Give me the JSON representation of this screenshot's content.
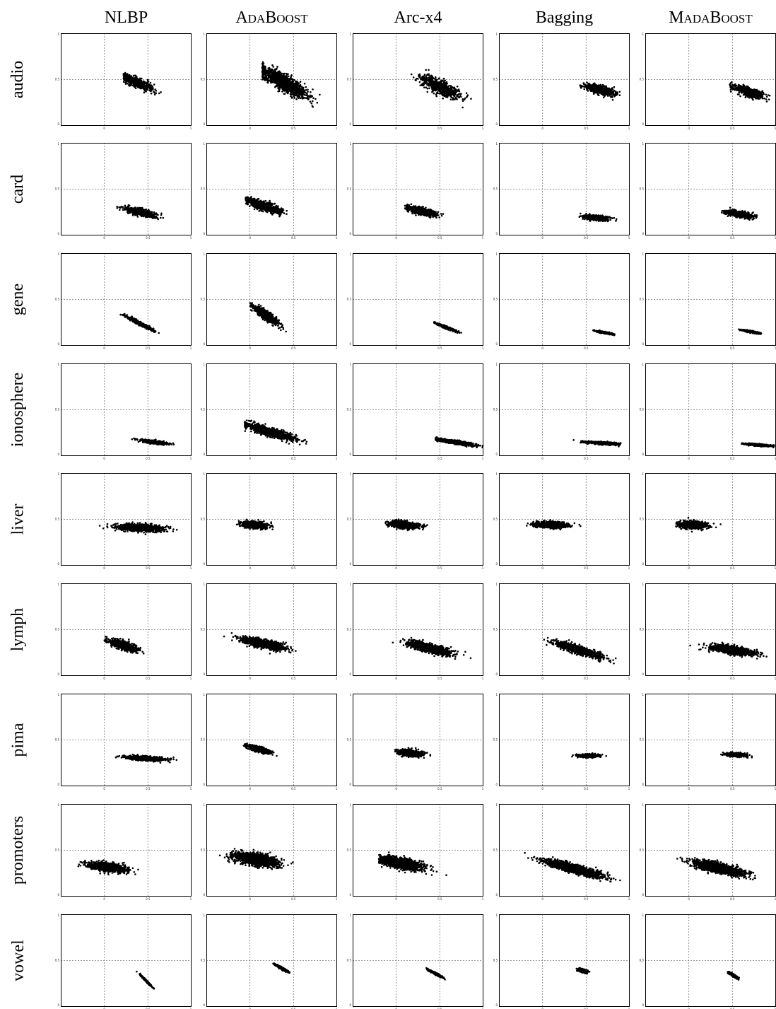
{
  "chart_data": {
    "type": "scatter",
    "layout": "small multiples (rows = datasets, columns = methods)",
    "columns": [
      "NLBP",
      "AdaBoost",
      "Arc-x4",
      "Bagging",
      "MadaBoost"
    ],
    "rows": [
      "audio",
      "card",
      "gene",
      "ionosphere",
      "liver",
      "lymph",
      "pima",
      "promoters",
      "vowel"
    ],
    "xlim": [
      -0.5,
      1
    ],
    "ylim": [
      0,
      1
    ],
    "x_ticks": [
      "0",
      "0.5",
      "1"
    ],
    "y_ticks": [
      "0",
      "0.5",
      "1"
    ],
    "grid": "dashed reference lines at x = 0, x = 0.5 and y = 0.5",
    "marker": "black dots",
    "clusters": [
      [
        {
          "cx": 0.37,
          "cy": 0.47,
          "sx": 0.17,
          "sy": 0.06,
          "slope": -0.38,
          "n": 500,
          "xmin": 0.22,
          "xmax": 0.65
        },
        {
          "cx": 0.39,
          "cy": 0.47,
          "sx": 0.24,
          "sy": 0.1,
          "slope": -0.5,
          "n": 1200,
          "xmin": 0.14,
          "xmax": 0.88
        },
        {
          "cx": 0.5,
          "cy": 0.42,
          "sx": 0.2,
          "sy": 0.08,
          "slope": -0.42,
          "n": 800,
          "xmin": 0.17,
          "xmax": 0.88
        },
        {
          "cx": 0.66,
          "cy": 0.39,
          "sx": 0.16,
          "sy": 0.05,
          "slope": -0.22,
          "n": 600,
          "xmin": 0.43,
          "xmax": 0.9
        },
        {
          "cx": 0.68,
          "cy": 0.37,
          "sx": 0.15,
          "sy": 0.05,
          "slope": -0.28,
          "n": 600,
          "xmin": 0.47,
          "xmax": 0.95
        }
      ],
      [
        {
          "cx": 0.42,
          "cy": 0.25,
          "sx": 0.17,
          "sy": 0.04,
          "slope": -0.22,
          "n": 500,
          "xmin": 0.1,
          "xmax": 0.78
        },
        {
          "cx": 0.16,
          "cy": 0.32,
          "sx": 0.17,
          "sy": 0.05,
          "slope": -0.3,
          "n": 900,
          "xmin": -0.05,
          "xmax": 0.65
        },
        {
          "cx": 0.29,
          "cy": 0.26,
          "sx": 0.16,
          "sy": 0.04,
          "slope": -0.2,
          "n": 600,
          "xmin": 0.1,
          "xmax": 0.72
        },
        {
          "cx": 0.62,
          "cy": 0.19,
          "sx": 0.13,
          "sy": 0.03,
          "slope": -0.08,
          "n": 500,
          "xmin": 0.37,
          "xmax": 0.85
        },
        {
          "cx": 0.58,
          "cy": 0.23,
          "sx": 0.14,
          "sy": 0.035,
          "slope": -0.14,
          "n": 500,
          "xmin": 0.3,
          "xmax": 0.78
        }
      ],
      [
        {
          "cx": 0.41,
          "cy": 0.24,
          "sx": 0.14,
          "sy": 0.02,
          "slope": -0.48,
          "n": 500,
          "xmin": 0.15,
          "xmax": 0.69
        },
        {
          "cx": 0.18,
          "cy": 0.33,
          "sx": 0.13,
          "sy": 0.05,
          "slope": -0.6,
          "n": 800,
          "xmin": 0.0,
          "xmax": 0.64
        },
        {
          "cx": 0.57,
          "cy": 0.2,
          "sx": 0.1,
          "sy": 0.015,
          "slope": -0.35,
          "n": 400,
          "xmin": 0.43,
          "xmax": 0.76
        },
        {
          "cx": 0.72,
          "cy": 0.14,
          "sx": 0.1,
          "sy": 0.01,
          "slope": -0.18,
          "n": 400,
          "xmin": 0.58,
          "xmax": 0.83
        },
        {
          "cx": 0.72,
          "cy": 0.15,
          "sx": 0.1,
          "sy": 0.012,
          "slope": -0.17,
          "n": 400,
          "xmin": 0.56,
          "xmax": 0.83
        }
      ],
      [
        {
          "cx": 0.57,
          "cy": 0.15,
          "sx": 0.14,
          "sy": 0.02,
          "slope": -0.12,
          "n": 400,
          "xmin": 0.3,
          "xmax": 0.84
        },
        {
          "cx": 0.23,
          "cy": 0.26,
          "sx": 0.25,
          "sy": 0.05,
          "slope": -0.27,
          "n": 1000,
          "xmin": -0.06,
          "xmax": 0.85
        },
        {
          "cx": 0.67,
          "cy": 0.15,
          "sx": 0.21,
          "sy": 0.02,
          "slope": -0.15,
          "n": 800,
          "xmin": 0.45,
          "xmax": 1.0
        },
        {
          "cx": 0.68,
          "cy": 0.14,
          "sx": 0.17,
          "sy": 0.015,
          "slope": -0.06,
          "n": 600,
          "xmin": 0.26,
          "xmax": 0.9
        },
        {
          "cx": 0.8,
          "cy": 0.12,
          "sx": 0.15,
          "sy": 0.012,
          "slope": -0.07,
          "n": 500,
          "xmin": 0.58,
          "xmax": 0.98
        }
      ],
      [
        {
          "cx": 0.41,
          "cy": 0.41,
          "sx": 0.24,
          "sy": 0.04,
          "slope": -0.04,
          "n": 1000,
          "xmin": -0.1,
          "xmax": 0.96
        },
        {
          "cx": 0.05,
          "cy": 0.44,
          "sx": 0.13,
          "sy": 0.04,
          "slope": -0.08,
          "n": 700,
          "xmin": -0.18,
          "xmax": 0.35
        },
        {
          "cx": 0.09,
          "cy": 0.44,
          "sx": 0.15,
          "sy": 0.04,
          "slope": -0.07,
          "n": 700,
          "xmin": -0.27,
          "xmax": 0.45
        },
        {
          "cx": 0.08,
          "cy": 0.44,
          "sx": 0.17,
          "sy": 0.035,
          "slope": -0.03,
          "n": 800,
          "xmin": -0.2,
          "xmax": 0.54
        },
        {
          "cx": 0.05,
          "cy": 0.44,
          "sx": 0.15,
          "sy": 0.04,
          "slope": -0.03,
          "n": 800,
          "xmin": -0.15,
          "xmax": 0.45
        }
      ],
      [
        {
          "cx": 0.22,
          "cy": 0.33,
          "sx": 0.15,
          "sy": 0.05,
          "slope": -0.25,
          "n": 700,
          "xmin": 0.0,
          "xmax": 0.55
        },
        {
          "cx": 0.15,
          "cy": 0.35,
          "sx": 0.23,
          "sy": 0.05,
          "slope": -0.2,
          "n": 1000,
          "xmin": -0.3,
          "xmax": 0.78
        },
        {
          "cx": 0.38,
          "cy": 0.3,
          "sx": 0.23,
          "sy": 0.05,
          "slope": -0.22,
          "n": 1000,
          "xmin": -0.1,
          "xmax": 0.9
        },
        {
          "cx": 0.42,
          "cy": 0.28,
          "sx": 0.24,
          "sy": 0.045,
          "slope": -0.28,
          "n": 1000,
          "xmin": -0.05,
          "xmax": 0.9
        },
        {
          "cx": 0.5,
          "cy": 0.28,
          "sx": 0.23,
          "sy": 0.045,
          "slope": -0.12,
          "n": 1000,
          "xmin": 0.0,
          "xmax": 0.9
        }
      ],
      [
        {
          "cx": 0.48,
          "cy": 0.3,
          "sx": 0.2,
          "sy": 0.025,
          "slope": -0.05,
          "n": 700,
          "xmin": 0.12,
          "xmax": 0.9
        },
        {
          "cx": 0.1,
          "cy": 0.4,
          "sx": 0.12,
          "sy": 0.03,
          "slope": -0.25,
          "n": 600,
          "xmin": -0.12,
          "xmax": 0.45
        },
        {
          "cx": 0.16,
          "cy": 0.36,
          "sx": 0.13,
          "sy": 0.035,
          "slope": -0.08,
          "n": 700,
          "xmin": -0.02,
          "xmax": 0.5
        },
        {
          "cx": 0.53,
          "cy": 0.33,
          "sx": 0.11,
          "sy": 0.02,
          "slope": 0.0,
          "n": 500,
          "xmin": 0.3,
          "xmax": 0.75
        },
        {
          "cx": 0.54,
          "cy": 0.34,
          "sx": 0.11,
          "sy": 0.022,
          "slope": -0.05,
          "n": 500,
          "xmin": 0.3,
          "xmax": 0.78
        }
      ],
      [
        {
          "cx": 0.04,
          "cy": 0.32,
          "sx": 0.2,
          "sy": 0.05,
          "slope": -0.12,
          "n": 900,
          "xmin": -0.3,
          "xmax": 0.65
        },
        {
          "cx": 0.08,
          "cy": 0.4,
          "sx": 0.23,
          "sy": 0.07,
          "slope": -0.15,
          "n": 1400,
          "xmin": -0.5,
          "xmax": 0.82
        },
        {
          "cx": 0.05,
          "cy": 0.36,
          "sx": 0.23,
          "sy": 0.06,
          "slope": -0.18,
          "n": 1400,
          "xmin": -0.2,
          "xmax": 0.9
        },
        {
          "cx": 0.36,
          "cy": 0.3,
          "sx": 0.3,
          "sy": 0.05,
          "slope": -0.25,
          "n": 1400,
          "xmin": -0.3,
          "xmax": 1.0
        },
        {
          "cx": 0.34,
          "cy": 0.31,
          "sx": 0.27,
          "sy": 0.055,
          "slope": -0.2,
          "n": 1400,
          "xmin": -0.25,
          "xmax": 1.0
        }
      ],
      [
        {
          "cx": 0.48,
          "cy": 0.28,
          "sx": 0.06,
          "sy": 0.012,
          "slope": -0.95,
          "n": 300,
          "xmin": 0.36,
          "xmax": 0.62
        },
        {
          "cx": 0.36,
          "cy": 0.42,
          "sx": 0.06,
          "sy": 0.015,
          "slope": -0.55,
          "n": 300,
          "xmin": 0.25,
          "xmax": 0.53
        },
        {
          "cx": 0.45,
          "cy": 0.36,
          "sx": 0.07,
          "sy": 0.012,
          "slope": -0.5,
          "n": 300,
          "xmin": 0.29,
          "xmax": 0.6
        },
        {
          "cx": 0.46,
          "cy": 0.39,
          "sx": 0.05,
          "sy": 0.02,
          "slope": -0.2,
          "n": 300,
          "xmin": 0.31,
          "xmax": 0.58
        },
        {
          "cx": 0.51,
          "cy": 0.34,
          "sx": 0.05,
          "sy": 0.015,
          "slope": -0.55,
          "n": 250,
          "xmin": 0.37,
          "xmax": 0.62
        }
      ]
    ]
  }
}
